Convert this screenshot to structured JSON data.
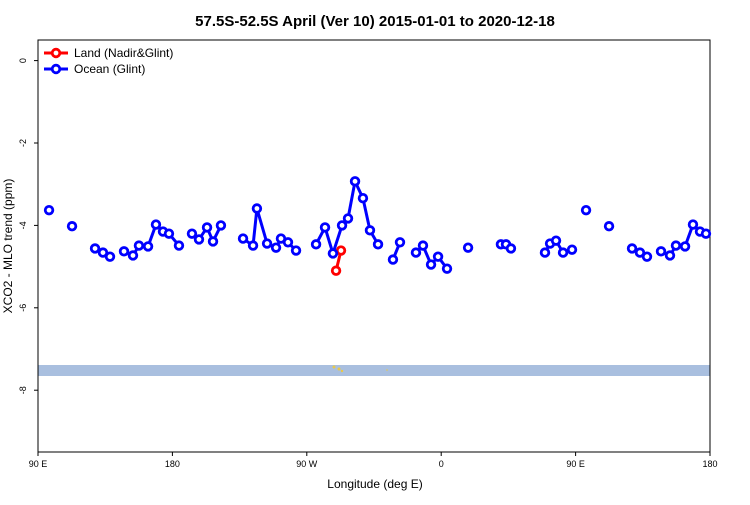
{
  "chart_data": {
    "type": "line",
    "title": "57.5S-52.5S April (Ver 10)   2015-01-01 to 2020-12-18",
    "x_label": "Longitude (deg E)",
    "y_label": "XCO2 - MLO trend (ppm)",
    "xlim": [
      90,
      540
    ],
    "ylim": [
      -9.5,
      0.5
    ],
    "xticks": [
      {
        "value": 90,
        "label": "90 E"
      },
      {
        "value": 180,
        "label": "180"
      },
      {
        "value": 270,
        "label": "90 W"
      },
      {
        "value": 360,
        "label": "0"
      },
      {
        "value": 450,
        "label": "90 E"
      },
      {
        "value": 540,
        "label": "180"
      }
    ],
    "yticks": [
      0,
      -2,
      -4,
      -6,
      -8
    ],
    "legend": "top-left",
    "series": [
      {
        "name": "Land (Nadir&Glint)",
        "color": "#ff0000",
        "x": [
          289.6,
          292.9
        ],
        "values": [
          -5.1,
          -4.61
        ]
      },
      {
        "name": "Ocean (Glint)",
        "color": "#0000ff",
        "x": [
          97.4,
          null,
          112.8,
          null,
          128.2,
          133.5,
          138.2,
          null,
          147.6,
          153.6,
          157.6,
          163.7,
          169.0,
          173.7,
          177.7,
          184.4,
          null,
          193.1,
          197.8,
          203.2,
          207.2,
          212.5,
          null,
          227.3,
          234.0,
          236.6,
          243.4,
          249.4,
          252.7,
          257.4,
          262.8,
          null,
          276.2,
          282.2,
          287.5,
          293.6,
          297.6,
          302.3,
          307.6,
          312.3,
          317.7,
          null,
          327.7,
          332.4,
          null,
          343.1,
          347.8,
          353.2,
          357.9,
          363.9,
          null,
          378.0,
          null,
          400.0,
          403.4,
          406.7,
          null,
          429.5,
          432.9,
          436.9,
          441.6,
          447.6,
          null,
          457.0,
          null,
          472.4,
          null,
          487.8,
          493.1,
          497.8,
          null,
          507.2,
          513.2,
          517.2,
          523.3,
          528.6,
          533.3,
          537.3
        ],
        "values": [
          -3.63,
          null,
          -4.02,
          null,
          -4.56,
          -4.66,
          -4.76,
          null,
          -4.63,
          -4.73,
          -4.49,
          -4.51,
          -3.98,
          -4.15,
          -4.2,
          -4.49,
          null,
          -4.2,
          -4.34,
          -4.05,
          -4.39,
          -4.0,
          null,
          -4.32,
          -4.49,
          -3.59,
          -4.44,
          -4.54,
          -4.32,
          -4.41,
          -4.61,
          null,
          -4.46,
          -4.05,
          -4.68,
          -4.0,
          -3.83,
          -2.93,
          -3.34,
          -4.12,
          -4.46,
          null,
          -4.83,
          -4.41,
          null,
          -4.66,
          -4.49,
          -4.95,
          -4.76,
          -5.05,
          null,
          -4.54,
          null,
          -4.46,
          -4.46,
          -4.56,
          null,
          -4.66,
          -4.44,
          -4.37,
          -4.66,
          -4.59,
          null,
          -3.63,
          null,
          -4.02,
          null,
          -4.56,
          -4.66,
          -4.76,
          null,
          -4.63,
          -4.73,
          -4.49,
          -4.51,
          -3.98,
          -4.15,
          -4.2
        ]
      }
    ]
  }
}
